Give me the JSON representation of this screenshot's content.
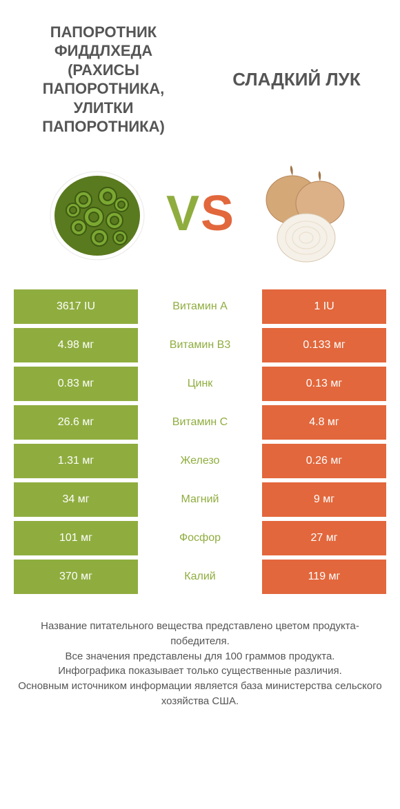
{
  "colors": {
    "left": "#8fad3f",
    "right": "#e2673c",
    "text": "#555555",
    "bg": "#ffffff"
  },
  "header": {
    "left_title": "ПАПОРОТНИК ФИДДЛХЕДА (РАХИСЫ ПАПОРОТНИКА, УЛИТКИ ПАПОРОТНИКА)",
    "right_title": "СЛАДКИЙ ЛУК",
    "vs_v": "V",
    "vs_s": "S"
  },
  "rows": [
    {
      "left": "3617 IU",
      "label": "Витамин A",
      "right": "1 IU",
      "winner": "left"
    },
    {
      "left": "4.98 мг",
      "label": "Витамин B3",
      "right": "0.133 мг",
      "winner": "left"
    },
    {
      "left": "0.83 мг",
      "label": "Цинк",
      "right": "0.13 мг",
      "winner": "left"
    },
    {
      "left": "26.6 мг",
      "label": "Витамин C",
      "right": "4.8 мг",
      "winner": "left"
    },
    {
      "left": "1.31 мг",
      "label": "Железо",
      "right": "0.26 мг",
      "winner": "left"
    },
    {
      "left": "34 мг",
      "label": "Магний",
      "right": "9 мг",
      "winner": "left"
    },
    {
      "left": "101 мг",
      "label": "Фосфор",
      "right": "27 мг",
      "winner": "left"
    },
    {
      "left": "370 мг",
      "label": "Калий",
      "right": "119 мг",
      "winner": "left"
    }
  ],
  "footer": {
    "line1": "Название питательного вещества представлено цветом продукта-победителя.",
    "line2": "Все значения представлены для 100 граммов продукта.",
    "line3": "Инфографика показывает только существенные различия.",
    "line4": "Основным источником информации является база министерства сельского хозяйства США."
  }
}
